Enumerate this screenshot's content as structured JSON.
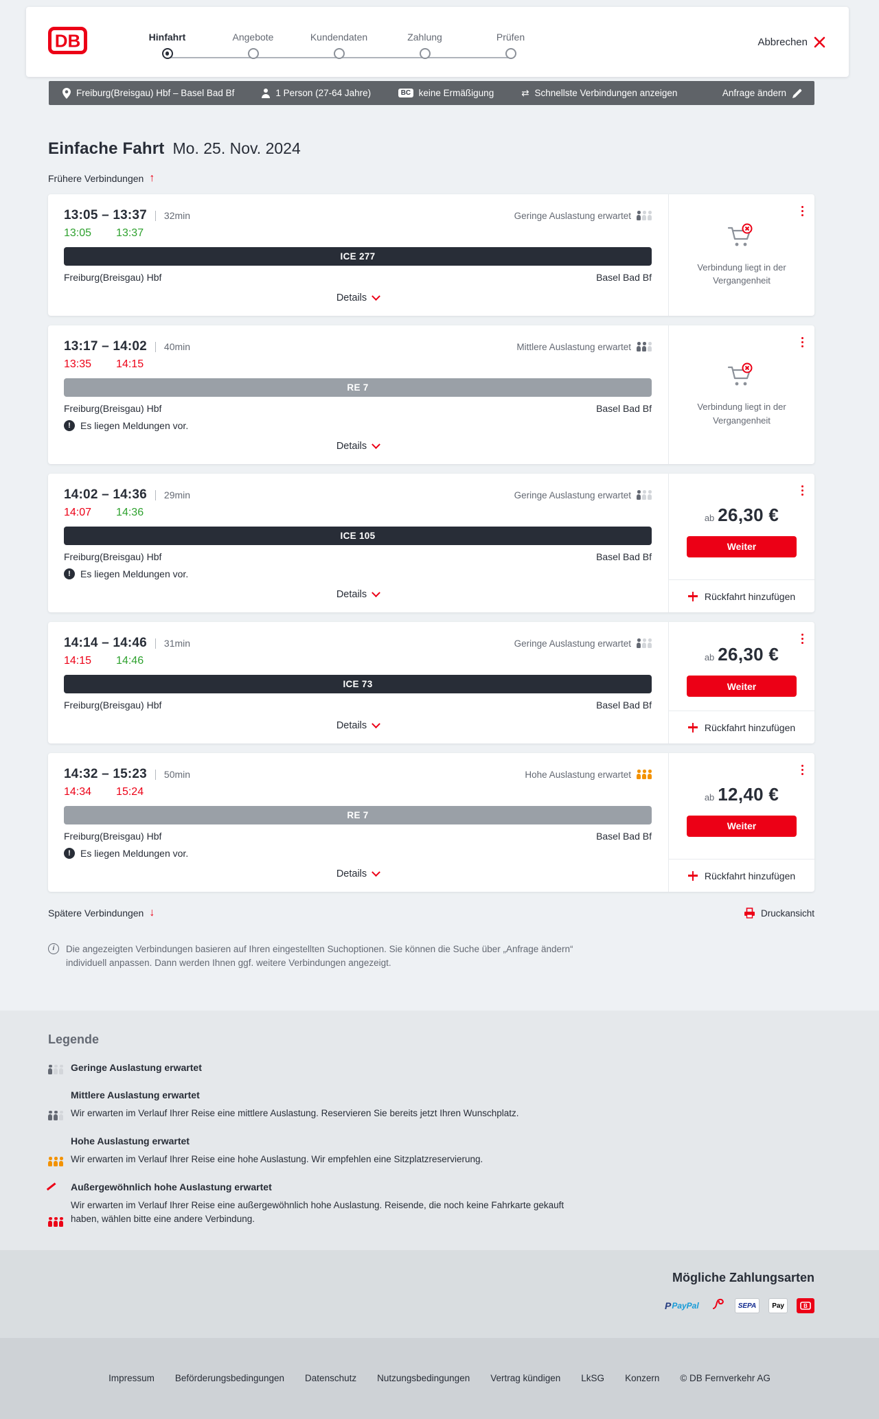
{
  "header": {
    "logo": "DB",
    "steps": [
      {
        "label": "Hinfahrt",
        "state": "active"
      },
      {
        "label": "Angebote",
        "state": "upcoming"
      },
      {
        "label": "Kundendaten",
        "state": "upcoming"
      },
      {
        "label": "Zahlung",
        "state": "upcoming"
      },
      {
        "label": "Prüfen",
        "state": "upcoming"
      }
    ],
    "cancel_label": "Abbrechen"
  },
  "trip_bar": {
    "route": "Freiburg(Breisgau) Hbf – Basel Bad Bf",
    "passengers": "1 Person (27-64 Jahre)",
    "bahncard_badge": "BC",
    "discount": "keine Ermäßigung",
    "swap_glyph": "⇄",
    "sort": "Schnellste Verbindungen anzeigen",
    "change_request": "Anfrage ändern"
  },
  "page": {
    "title": "Einfache Fahrt",
    "date": "Mo. 25. Nov. 2024",
    "earlier": "Frühere Verbindungen",
    "later": "Spätere Verbindungen",
    "print": "Druckansicht",
    "up_arrow": "↑",
    "down_arrow": "↓",
    "info_glyph": "i",
    "alert_glyph": "!",
    "note": "Die angezeigten Verbindungen basieren auf Ihren eingestellten Suchoptionen. Sie können die Suche über „Anfrage ändern“ individuell anpassen. Dann werden Ihnen ggf. weitere Verbindungen angezeigt."
  },
  "connections": [
    {
      "time_range": "13:05 – 13:37",
      "duration": "32min",
      "occupancy_label": "Geringe Auslastung erwartet",
      "occupancy_level": "low",
      "departure_actual": "13:05",
      "departure_status": "ontime",
      "arrival_actual": "13:37",
      "arrival_status": "ontime",
      "train_label": "ICE 277",
      "train_variant": "ice",
      "from": "Freiburg(Breisgau) Hbf",
      "to": "Basel Bad Bf",
      "details_label": "Details",
      "rail": {
        "type": "past",
        "label": "Verbindung liegt in der Vergangenheit"
      }
    },
    {
      "time_range": "13:17 – 14:02",
      "duration": "40min",
      "occupancy_label": "Mittlere Auslastung erwartet",
      "occupancy_level": "medium",
      "departure_actual": "13:35",
      "departure_status": "delayed",
      "arrival_actual": "14:15",
      "arrival_status": "delayed",
      "train_label": "RE 7",
      "train_variant": "re",
      "from": "Freiburg(Breisgau) Hbf",
      "to": "Basel Bad Bf",
      "messages_label": "Es liegen Meldungen vor.",
      "details_label": "Details",
      "rail": {
        "type": "past",
        "label": "Verbindung liegt in der Vergangenheit"
      }
    },
    {
      "time_range": "14:02 – 14:36",
      "duration": "29min",
      "occupancy_label": "Geringe Auslastung erwartet",
      "occupancy_level": "low",
      "departure_actual": "14:07",
      "departure_status": "delayed",
      "arrival_actual": "14:36",
      "arrival_status": "ontime",
      "train_label": "ICE 105",
      "train_variant": "ice",
      "from": "Freiburg(Breisgau) Hbf",
      "to": "Basel Bad Bf",
      "messages_label": "Es liegen Meldungen vor.",
      "details_label": "Details",
      "rail": {
        "type": "price",
        "prefix": "ab",
        "price": "26,30 €",
        "button_label": "Weiter",
        "add_return_label": "Rückfahrt hinzufügen"
      }
    },
    {
      "time_range": "14:14 – 14:46",
      "duration": "31min",
      "occupancy_label": "Geringe Auslastung erwartet",
      "occupancy_level": "low",
      "departure_actual": "14:15",
      "departure_status": "delayed",
      "arrival_actual": "14:46",
      "arrival_status": "ontime",
      "train_label": "ICE 73",
      "train_variant": "ice",
      "from": "Freiburg(Breisgau) Hbf",
      "to": "Basel Bad Bf",
      "details_label": "Details",
      "rail": {
        "type": "price",
        "prefix": "ab",
        "price": "26,30 €",
        "button_label": "Weiter",
        "add_return_label": "Rückfahrt hinzufügen"
      }
    },
    {
      "time_range": "14:32 – 15:23",
      "duration": "50min",
      "occupancy_label": "Hohe Auslastung erwartet",
      "occupancy_level": "high",
      "departure_actual": "14:34",
      "departure_status": "delayed",
      "arrival_actual": "15:24",
      "arrival_status": "delayed",
      "train_label": "RE 7",
      "train_variant": "re",
      "from": "Freiburg(Breisgau) Hbf",
      "to": "Basel Bad Bf",
      "messages_label": "Es liegen Meldungen vor.",
      "details_label": "Details",
      "rail": {
        "type": "price",
        "prefix": "ab",
        "price": "12,40 €",
        "button_label": "Weiter",
        "add_return_label": "Rückfahrt hinzufügen"
      }
    }
  ],
  "legend": {
    "title": "Legende",
    "items": [
      {
        "label": "Geringe Auslastung erwartet",
        "level": "low",
        "description": ""
      },
      {
        "label": "Mittlere Auslastung erwartet",
        "level": "medium",
        "description": "Wir erwarten im Verlauf Ihrer Reise eine mittlere Auslastung. Reservieren Sie bereits jetzt Ihren Wunschplatz."
      },
      {
        "label": "Hohe Auslastung erwartet",
        "level": "high",
        "description": "Wir erwarten im Verlauf Ihrer Reise eine hohe Auslastung. Wir empfehlen eine Sitzplatzreservierung."
      },
      {
        "label": "Außergewöhnlich hohe Auslastung erwartet",
        "level": "exceptional",
        "description": "Wir erwarten im Verlauf Ihrer Reise eine außergewöhnlich hohe Auslastung. Reisende, die noch keine Fahrkarte gekauft haben, wählen bitte eine andere Verbindung."
      }
    ]
  },
  "payment": {
    "title": "Mögliche Zahlungsarten",
    "paypal_label": "PayPal",
    "paypal_p": "P",
    "sepa_label": "SEPA",
    "applepay_label": "Pay"
  },
  "footer": {
    "links": [
      "Impressum",
      "Beförderungsbedingungen",
      "Datenschutz",
      "Nutzungsbedingungen",
      "Vertrag kündigen",
      "LkSG",
      "Konzern"
    ],
    "copyright": "© DB Fernverkehr AG"
  },
  "colors": {
    "db_red": "#ec0016",
    "green_ontime": "#2ea12e",
    "dark_navy": "#282d37",
    "gray_text": "#646973",
    "orange_high": "#f39200"
  }
}
